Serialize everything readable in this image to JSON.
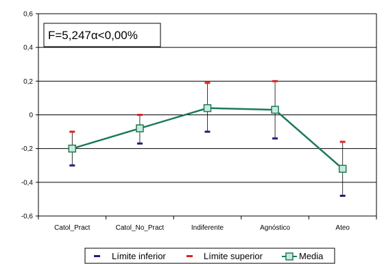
{
  "chart_data": {
    "type": "line",
    "categories": [
      "Catol_Pract",
      "Catol_No_Pract",
      "Indiferente",
      "Agnóstico",
      "Ateo"
    ],
    "series": [
      {
        "name": "Límite inferior",
        "values": [
          -0.3,
          -0.17,
          -0.1,
          -0.14,
          -0.48
        ],
        "color": "#1f1f7a"
      },
      {
        "name": "Límite superior",
        "values": [
          -0.1,
          0.0,
          0.19,
          0.2,
          -0.16
        ],
        "color": "#e02020"
      },
      {
        "name": "Media",
        "values": [
          -0.2,
          -0.08,
          0.04,
          0.03,
          -0.32
        ],
        "color": "#1a7a5a",
        "marker_fill": "#c8ecd8"
      }
    ],
    "ylim": [
      -0.6,
      0.6
    ],
    "yticks": [
      "0,6",
      "0,4",
      "0,2",
      "0",
      "-0,2",
      "-0,4",
      "-0,6"
    ],
    "annotation": "F=5,247α<0,00%",
    "grid": "horizontal",
    "legend_position": "bottom"
  }
}
